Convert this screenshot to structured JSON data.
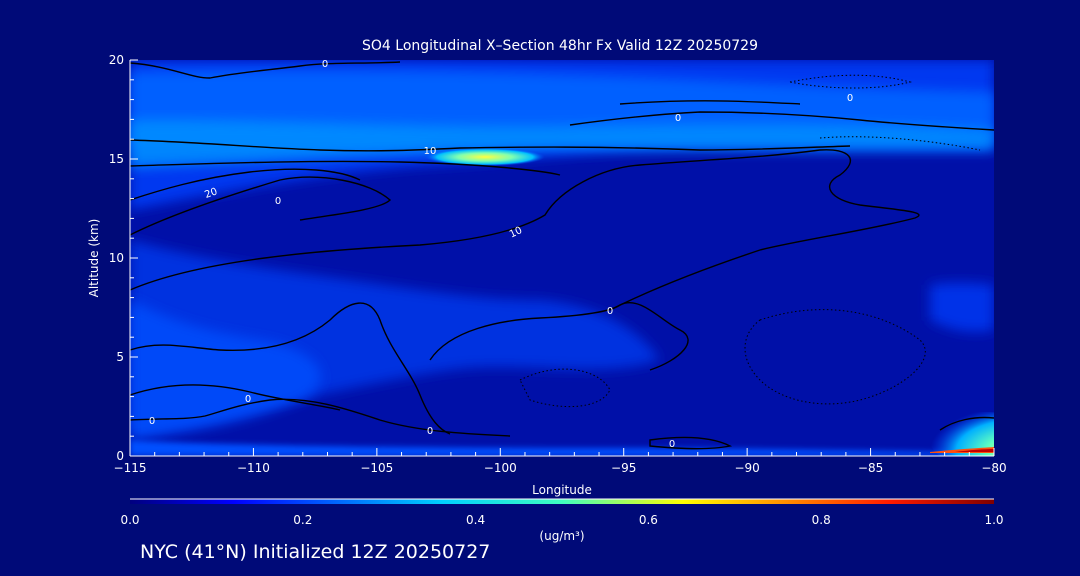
{
  "chart_data": {
    "type": "heatmap",
    "title": "SO4 Longitudinal X–Section 48hr  Fx Valid 12Z 20250729",
    "xlabel": "Longitude",
    "ylabel": "Altitude (km)",
    "xlim": [
      -115,
      -80
    ],
    "ylim": [
      0,
      20
    ],
    "x_ticks": [
      -115,
      -110,
      -105,
      -100,
      -95,
      -90,
      -85,
      -80
    ],
    "x_tick_labels": [
      "−115",
      "−110",
      "−105",
      "−100",
      "−95",
      "−90",
      "−85",
      "−80"
    ],
    "y_ticks": [
      0,
      5,
      10,
      15,
      20
    ],
    "y_tick_labels": [
      "0",
      "5",
      "10",
      "15",
      "20"
    ],
    "colorbar": {
      "min": 0.0,
      "max": 1.0,
      "tick_values": [
        0.0,
        0.2,
        0.4,
        0.6,
        0.8,
        1.0
      ],
      "tick_labels": [
        "0.0",
        "0.2",
        "0.4",
        "0.6",
        "0.8",
        "1.0"
      ],
      "label": "(ug/m³)",
      "colormap": "jet"
    },
    "field_estimate": [
      {
        "lon": -115,
        "alt_range": [
          0,
          2
        ],
        "value": 0.2
      },
      {
        "lon": -110,
        "alt_range": [
          4,
          10
        ],
        "value": 0.15
      },
      {
        "lon": -101,
        "alt_range": [
          14.8,
          15.3
        ],
        "value": 0.6
      },
      {
        "lon": -100,
        "alt_range": [
          15.5,
          19
        ],
        "value": 0.3
      },
      {
        "lon": -90,
        "alt_range": [
          16,
          17
        ],
        "value": 0.2
      },
      {
        "lon": -80,
        "alt_range": [
          0.3,
          1.5
        ],
        "value": 0.6
      },
      {
        "lon": -80,
        "alt_range": [
          0,
          0.2
        ],
        "value": 1.0
      }
    ],
    "contour_labels": [
      "0",
      "0",
      "0",
      "10",
      "10",
      "20",
      "0",
      "0",
      "0",
      "0",
      "0",
      "0"
    ],
    "grid": false
  },
  "footer": {
    "text": "NYC (41°N) Initialized 12Z 20250727"
  }
}
